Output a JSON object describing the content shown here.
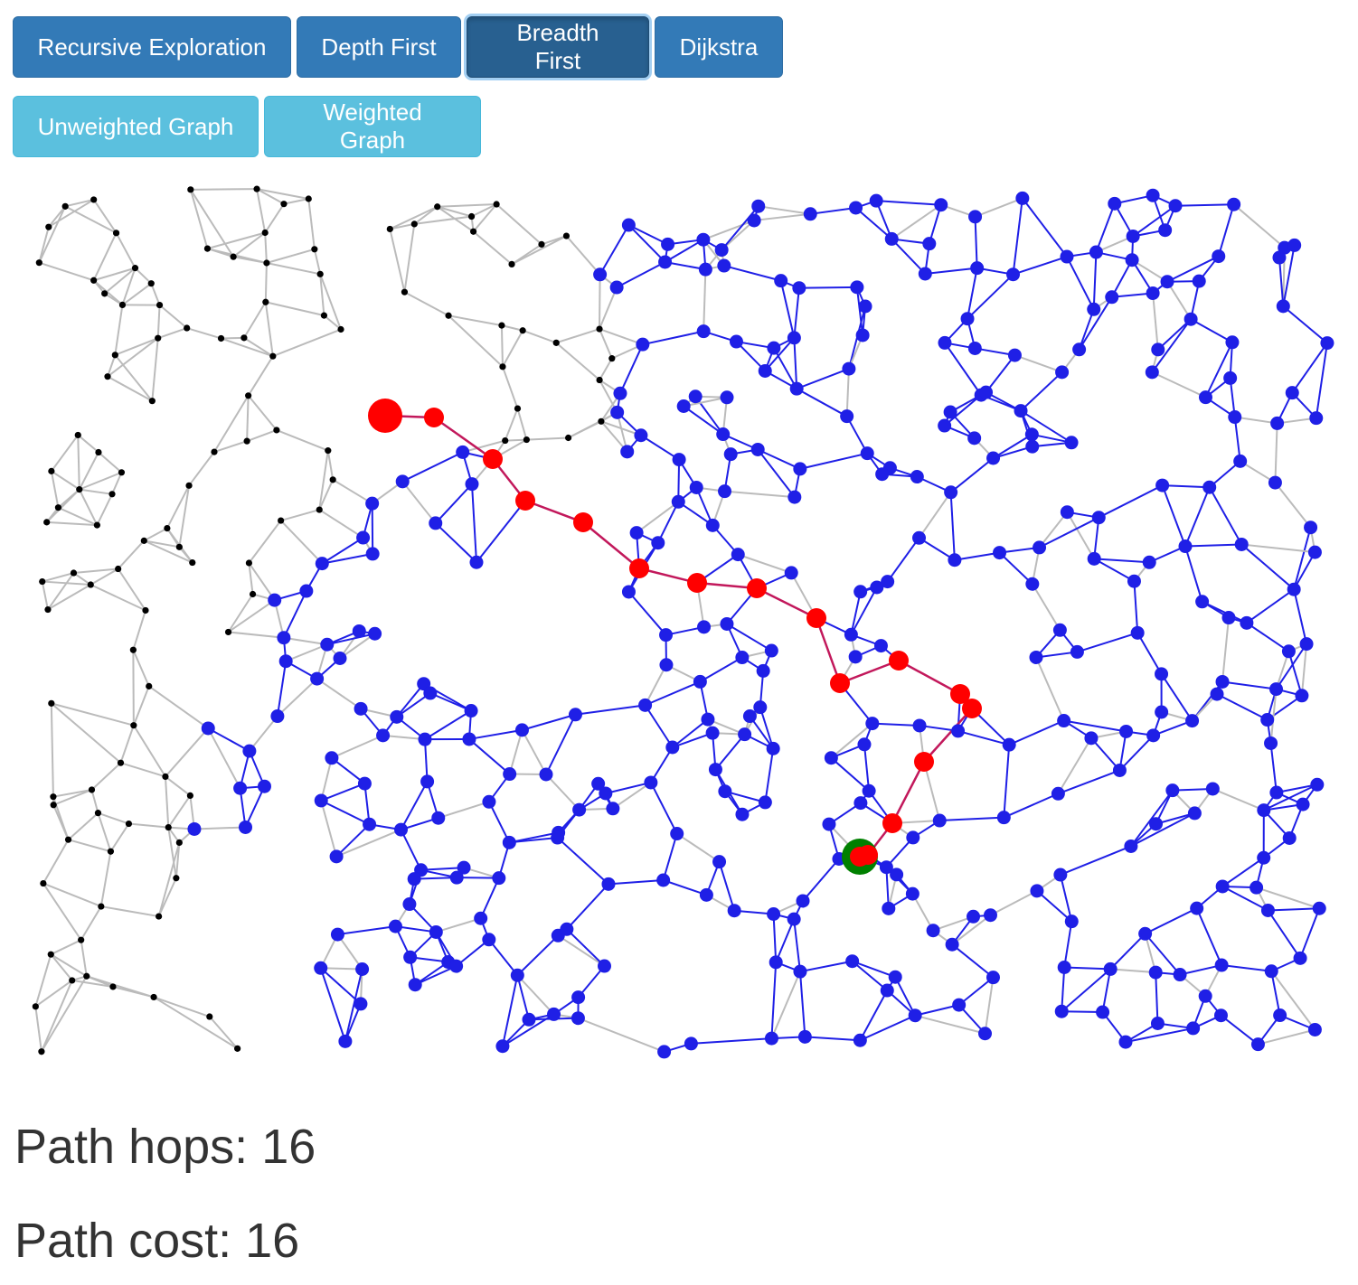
{
  "algorithms": {
    "recursive_label": "Recursive Exploration",
    "depth_label": "Depth First",
    "breadth_label": "Breadth First",
    "dijkstra_label": "Dijkstra",
    "active": "Breadth First"
  },
  "graph_types": {
    "unweighted_label": "Unweighted Graph",
    "weighted_label": "Weighted Graph"
  },
  "colors": {
    "unvisited_node": "#000000",
    "unvisited_edge": "#bbbbbb",
    "visited": "#1f1fe6",
    "path": "#ff0000",
    "path_edge": "#c2185b",
    "goal": "#008000"
  },
  "graph": {
    "visualization": "graph search",
    "path_node_count": 17
  },
  "stats": {
    "hops_text": "Path hops: 16",
    "cost_text": "Path cost: 16"
  }
}
